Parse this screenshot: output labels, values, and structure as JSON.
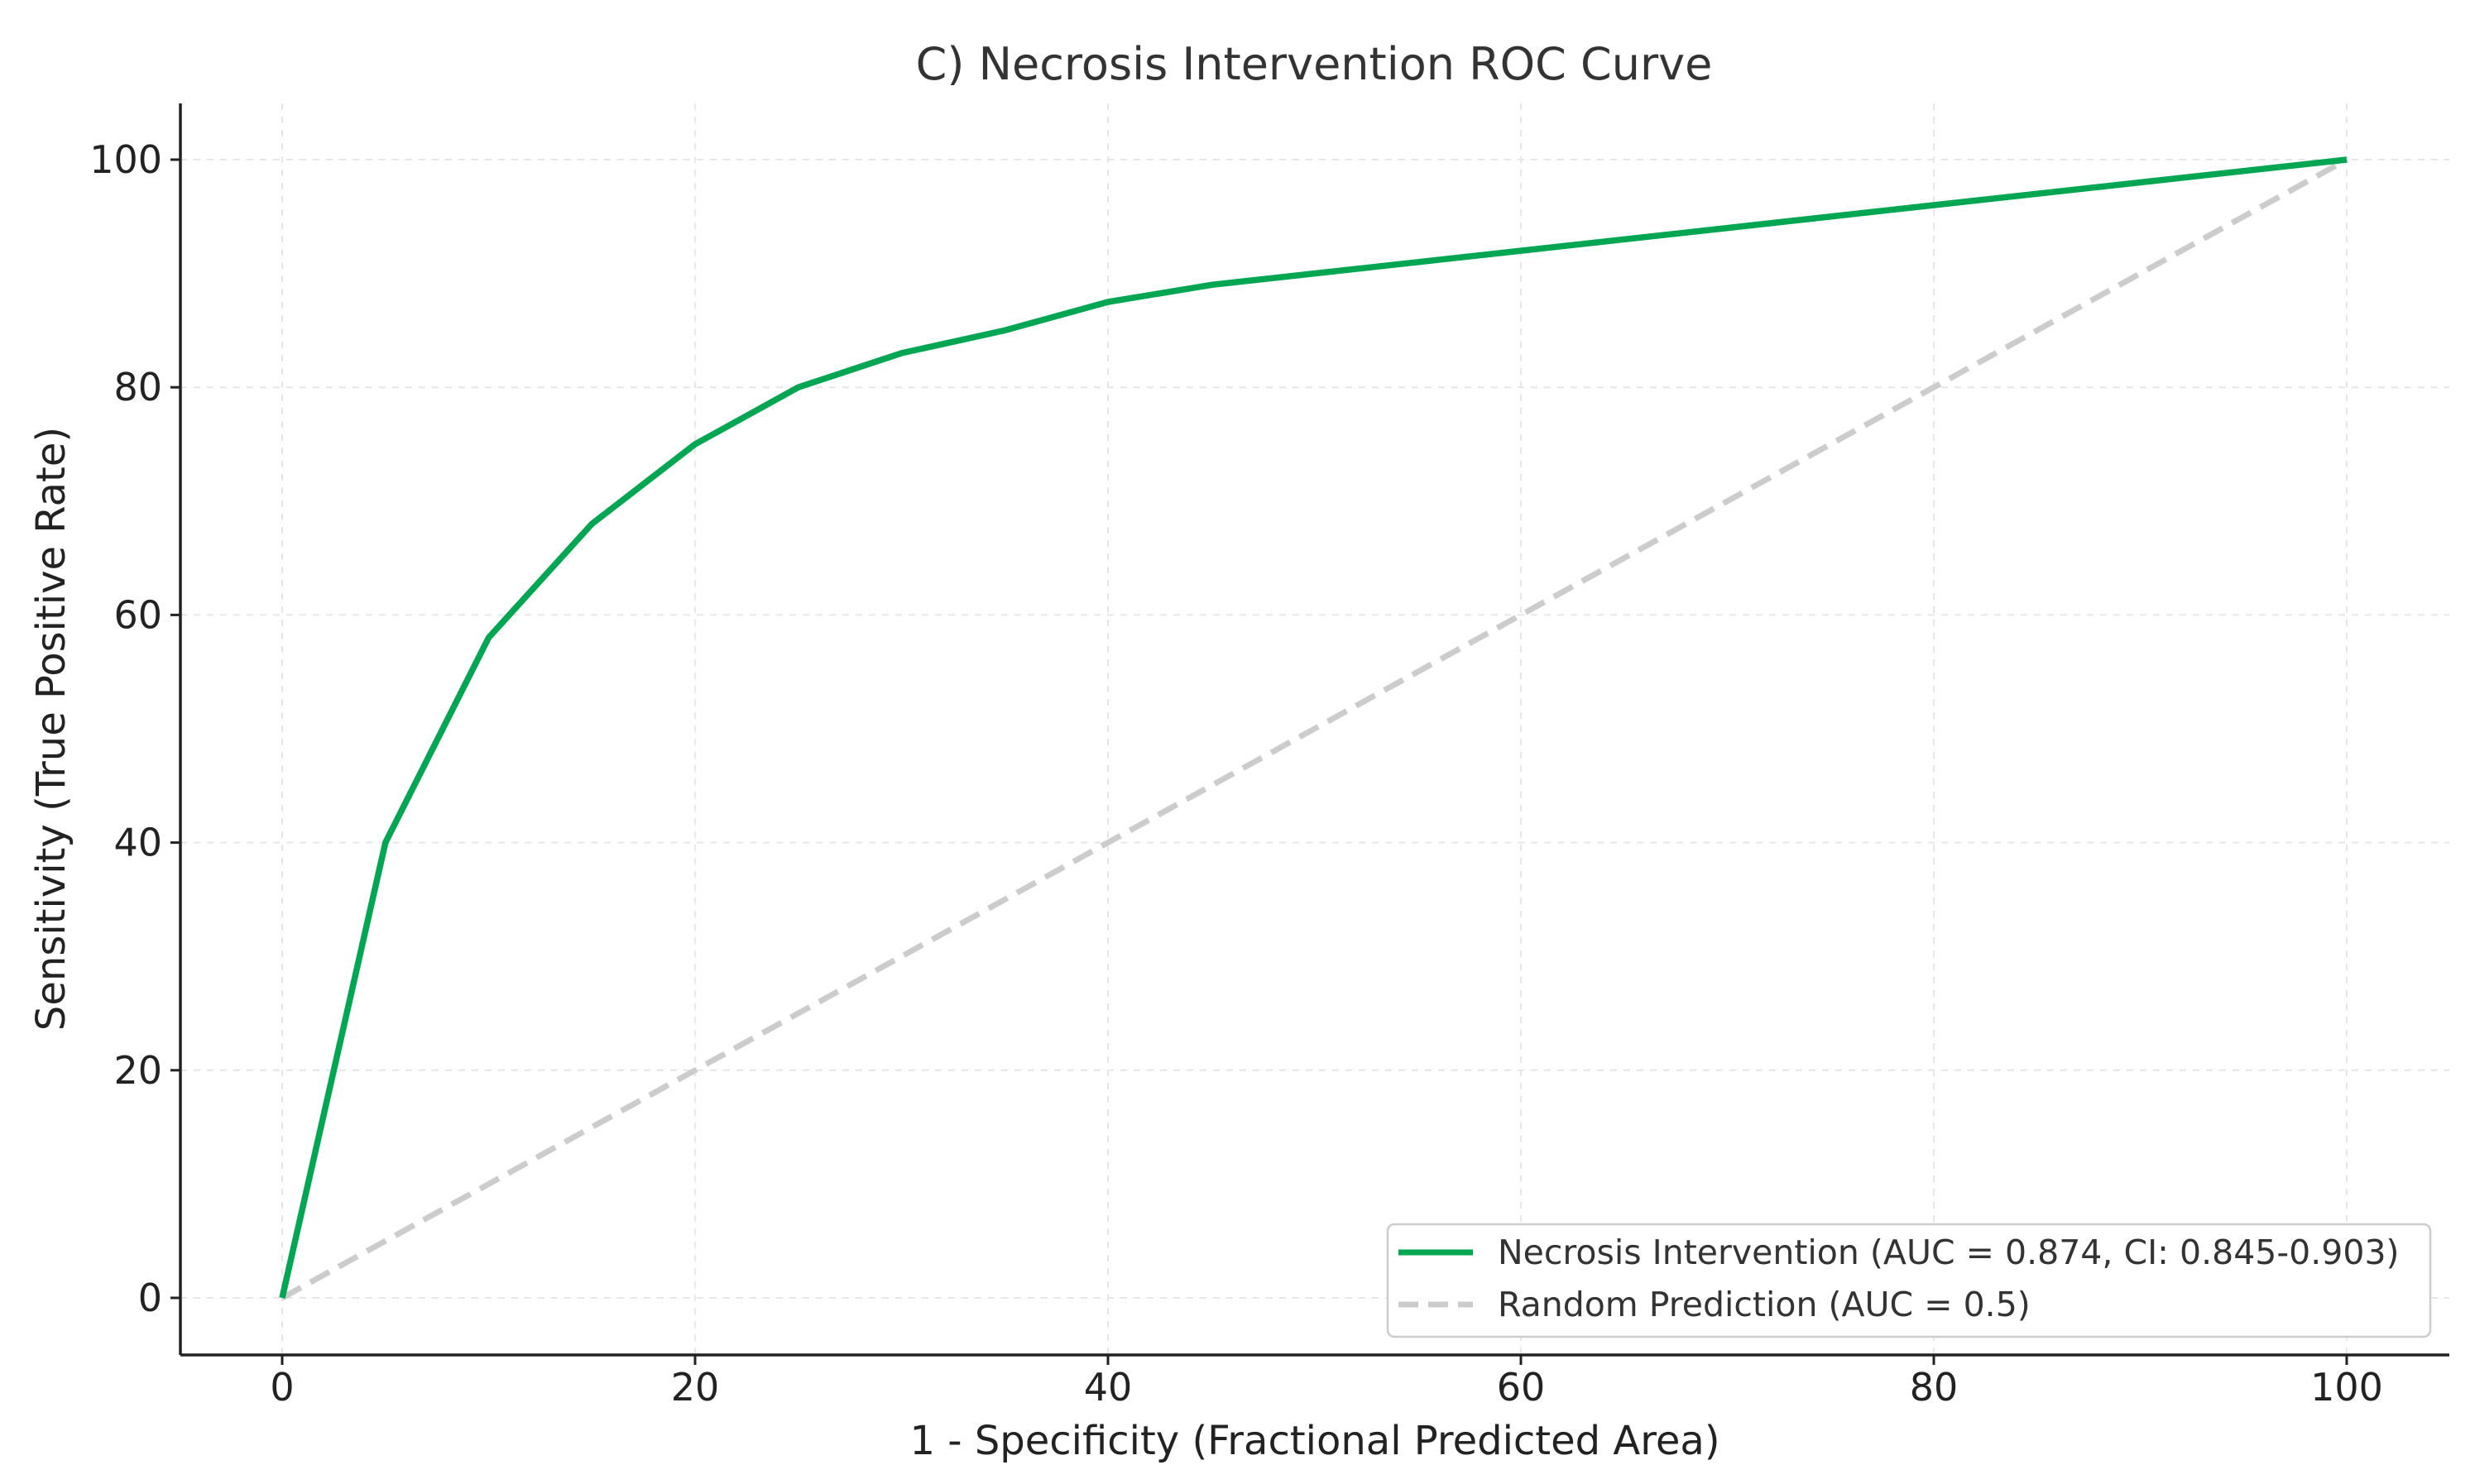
{
  "chart_data": {
    "type": "line",
    "title": "C) Necrosis Intervention ROC Curve",
    "xlabel": "1 - Specificity (Fractional Predicted Area)",
    "ylabel": "Sensitivity (True Positive Rate)",
    "xlim": [
      -5,
      105
    ],
    "ylim": [
      -5,
      105
    ],
    "xticks": [
      0,
      20,
      40,
      60,
      80,
      100
    ],
    "yticks": [
      0,
      20,
      40,
      60,
      80,
      100
    ],
    "xtick_labels": [
      "0",
      "20",
      "40",
      "60",
      "80",
      "100"
    ],
    "ytick_labels": [
      "0",
      "20",
      "40",
      "60",
      "80",
      "100"
    ],
    "grid": true,
    "legend_position": "lower-right",
    "series": [
      {
        "name": "Necrosis Intervention (AUC = 0.874, CI: 0.845-0.903)",
        "color": "#00a651",
        "style": "solid",
        "x": [
          0,
          5,
          10,
          15,
          20,
          25,
          30,
          35,
          40,
          45,
          50,
          60,
          70,
          80,
          90,
          100
        ],
        "y": [
          0,
          40,
          58,
          68,
          75,
          80,
          83,
          85,
          87.5,
          89,
          90,
          92,
          94,
          96,
          98,
          100
        ]
      },
      {
        "name": "Random Prediction (AUC = 0.5)",
        "color": "#cccccc",
        "style": "dashed",
        "x": [
          0,
          100
        ],
        "y": [
          0,
          100
        ]
      }
    ]
  }
}
